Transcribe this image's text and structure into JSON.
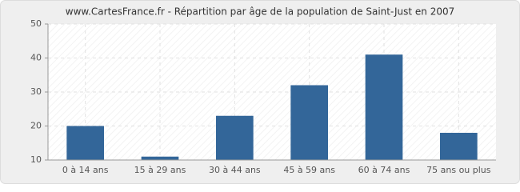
{
  "chart_data": {
    "type": "bar",
    "title": "www.CartesFrance.fr - Répartition par âge de la population de Saint-Just en 2007",
    "categories": [
      "0 à 14 ans",
      "15 à 29 ans",
      "30 à 44 ans",
      "45 à 59 ans",
      "60 à 74 ans",
      "75 ans ou plus"
    ],
    "values": [
      20,
      11,
      23,
      32,
      41,
      18
    ],
    "color": "#336699",
    "ylim": [
      10,
      50
    ],
    "yticks": [
      10,
      20,
      30,
      40,
      50
    ],
    "grid": true
  }
}
